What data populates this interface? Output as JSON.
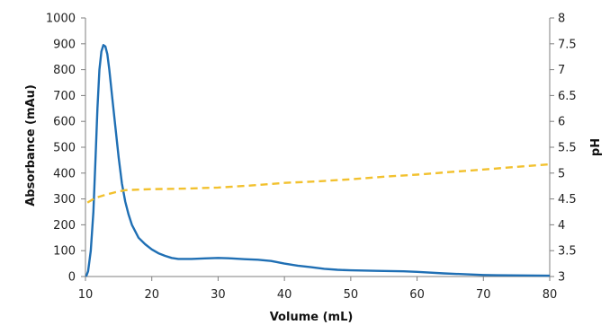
{
  "chart_data": {
    "type": "line",
    "xlabel": "Volume (mL)",
    "ylabel": "Absorbance (mAu)",
    "y2label": "pH",
    "xlim": [
      10,
      80
    ],
    "ylim": [
      0,
      1000
    ],
    "y2lim": [
      3,
      8
    ],
    "x_ticks": [
      "10",
      "20",
      "30",
      "40",
      "50",
      "60",
      "70",
      "80"
    ],
    "y_ticks": [
      "0",
      "100",
      "200",
      "300",
      "400",
      "500",
      "600",
      "700",
      "800",
      "900",
      "1000"
    ],
    "y2_ticks": [
      "3",
      "3.5",
      "4",
      "4.5",
      "5",
      "5.5",
      "6",
      "6.5",
      "7",
      "7.5",
      "8"
    ],
    "grid": false,
    "legend": "none",
    "series": [
      {
        "axis": "left",
        "color": "#1f6fb4",
        "style": "solid",
        "x": [
          10.1,
          10.4,
          10.8,
          11.2,
          11.5,
          11.8,
          12.1,
          12.4,
          12.7,
          13.0,
          13.3,
          13.6,
          14.0,
          14.5,
          15.0,
          15.5,
          16.0,
          16.5,
          17.0,
          18.0,
          19.0,
          20.0,
          21.0,
          22.0,
          23.0,
          24.0,
          26.0,
          28.0,
          30.0,
          32.0,
          34.0,
          36.0,
          38.0,
          40.0,
          42.0,
          44.0,
          46.0,
          48.0,
          50.0,
          54.0,
          58.0,
          60.0,
          64.0,
          68.0,
          70.0,
          72.0,
          76.0,
          80.0
        ],
        "y": [
          0,
          20,
          100,
          250,
          450,
          650,
          800,
          870,
          895,
          890,
          860,
          800,
          700,
          580,
          460,
          360,
          290,
          240,
          200,
          150,
          125,
          105,
          90,
          80,
          72,
          68,
          68,
          70,
          72,
          70,
          67,
          65,
          60,
          50,
          42,
          36,
          30,
          26,
          24,
          22,
          20,
          18,
          12,
          8,
          6,
          5,
          4,
          3
        ]
      },
      {
        "axis": "right",
        "color": "#f2c12e",
        "style": "dashed",
        "x": [
          10.3,
          11.5,
          13.0,
          14.5,
          16.0,
          18.0,
          20.0,
          25.0,
          30.0,
          35.0,
          40.0,
          45.0,
          50.0,
          55.0,
          60.0,
          65.0,
          70.0,
          75.0,
          80.0
        ],
        "y": [
          4.43,
          4.52,
          4.58,
          4.63,
          4.67,
          4.68,
          4.69,
          4.7,
          4.72,
          4.76,
          4.81,
          4.84,
          4.88,
          4.93,
          4.97,
          5.02,
          5.07,
          5.12,
          5.17
        ]
      }
    ]
  }
}
